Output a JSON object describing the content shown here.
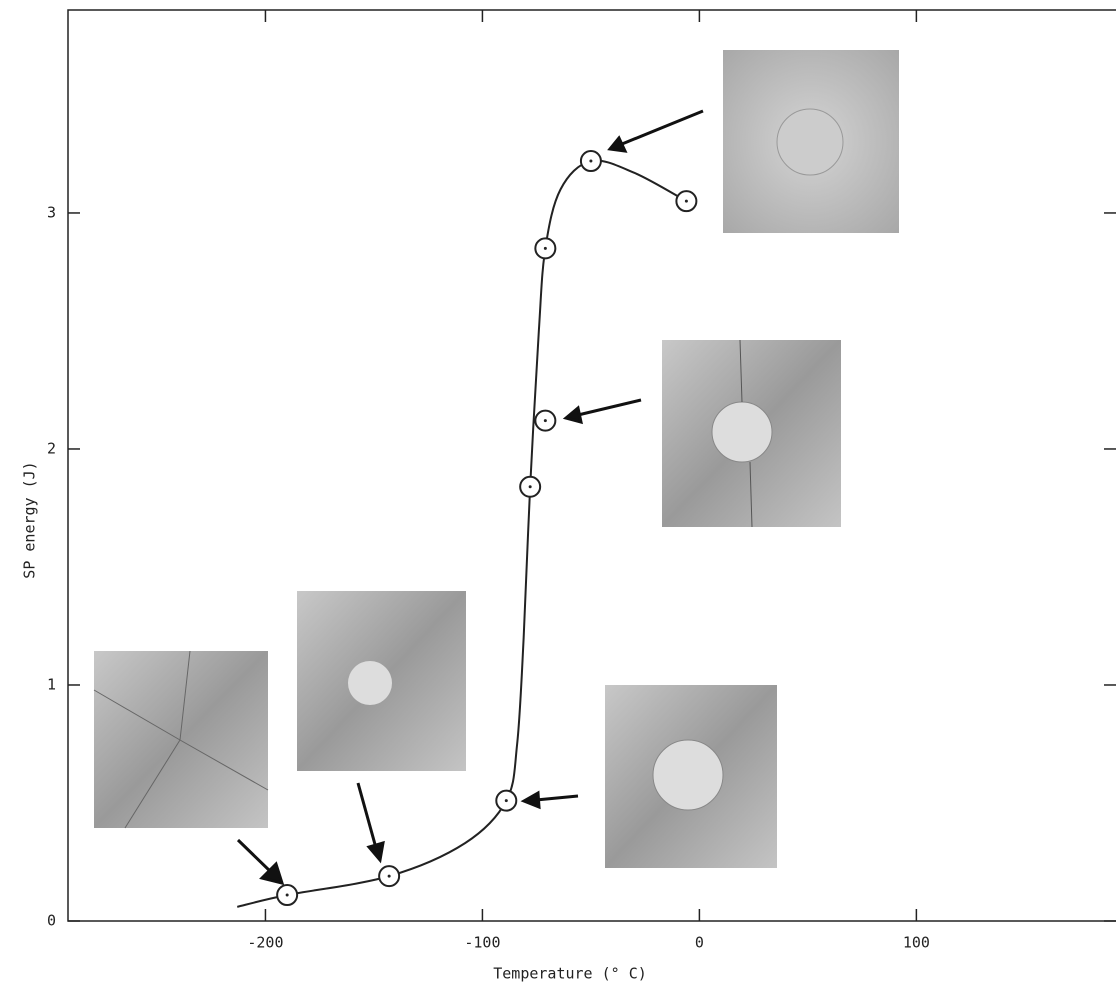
{
  "chart_data": {
    "type": "scatter",
    "x_label": "Temperature (° C)",
    "y_label": "SP energy (J)",
    "x": [
      -190,
      -143,
      -89,
      -78,
      -71,
      -71,
      -50,
      -6
    ],
    "values": [
      0.11,
      0.19,
      0.51,
      1.84,
      2.12,
      2.85,
      3.22,
      3.05
    ],
    "curve": {
      "x": [
        -213,
        -190,
        -143,
        -108,
        -89,
        -84,
        -81,
        -78,
        -74,
        -71,
        -64,
        -50,
        -30,
        -6
      ],
      "values": [
        0.06,
        0.11,
        0.19,
        0.33,
        0.51,
        0.75,
        1.2,
        1.84,
        2.5,
        2.85,
        3.1,
        3.22,
        3.17,
        3.05
      ]
    },
    "color": "#222222",
    "xlim": [
      -291,
      192
    ],
    "ylim": [
      0,
      3.86
    ],
    "xticks": [
      -200,
      -100,
      0,
      100
    ],
    "yticks": [
      0,
      1,
      2,
      3
    ]
  }
}
